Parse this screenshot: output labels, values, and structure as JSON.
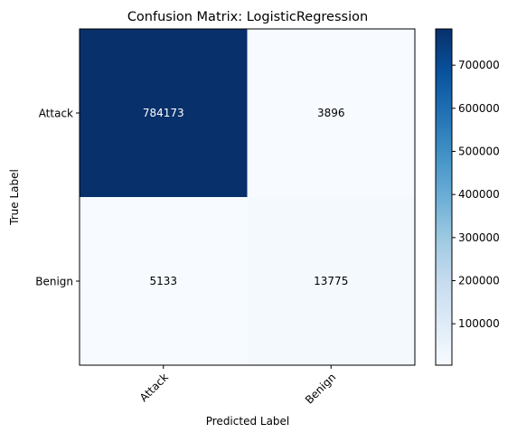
{
  "chart_data": {
    "type": "heatmap",
    "title": "Confusion Matrix: LogisticRegression",
    "xlabel": "Predicted Label",
    "ylabel": "True Label",
    "x_categories": [
      "Attack",
      "Benign"
    ],
    "y_categories": [
      "Attack",
      "Benign"
    ],
    "values": [
      [
        784173,
        3896
      ],
      [
        5133,
        13775
      ]
    ],
    "colormap": "Blues",
    "color_min": "#f7fbff",
    "color_max": "#08306b",
    "colorbar": {
      "range": [
        3896,
        784173
      ],
      "ticks": [
        100000,
        200000,
        300000,
        400000,
        500000,
        600000,
        700000
      ],
      "tick_labels": [
        "100000",
        "200000",
        "300000",
        "400000",
        "500000",
        "600000",
        "700000"
      ]
    },
    "grid": false
  }
}
